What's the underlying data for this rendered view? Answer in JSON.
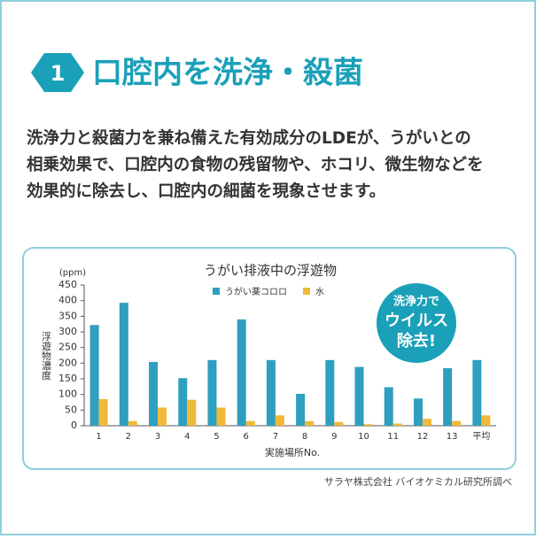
{
  "header": {
    "number": "1",
    "title": "口腔内を洗浄・殺菌"
  },
  "body": {
    "lines": [
      "洗浄力と殺菌力を兼ね備えた有効成分のLDEが、うがいとの",
      "相乗効果で、口腔内の食物の残留物や、ホコリ、微生物などを",
      "効果的に除去し、口腔内の細菌を現象させます。"
    ]
  },
  "badge": {
    "lines": [
      "洗浄力で",
      "ウイルス",
      "除去!"
    ]
  },
  "chart_data": {
    "type": "bar",
    "title": "うがい排液中の浮遊物",
    "y_unit": "(ppm)",
    "y_label": "浮遊物濃度",
    "x_label": "実施場所No.",
    "categories": [
      "1",
      "2",
      "3",
      "4",
      "5",
      "6",
      "7",
      "8",
      "9",
      "10",
      "11",
      "12",
      "13",
      "平均"
    ],
    "series": [
      {
        "name": "うがい薬コロロ",
        "color": "#2e9fbf",
        "values": [
          322,
          393,
          204,
          152,
          210,
          340,
          210,
          102,
          210,
          188,
          123,
          87,
          184,
          210
        ]
      },
      {
        "name": "水",
        "color": "#f0b93a",
        "values": [
          85,
          15,
          58,
          83,
          58,
          15,
          33,
          15,
          12,
          5,
          7,
          22,
          15,
          33
        ]
      }
    ],
    "ylim": [
      0,
      450
    ],
    "yticks": [
      0,
      50,
      100,
      150,
      200,
      250,
      300,
      350,
      400,
      450
    ],
    "grid": false
  },
  "source": "サラヤ株式会社 バイオケミカル研究所調べ"
}
